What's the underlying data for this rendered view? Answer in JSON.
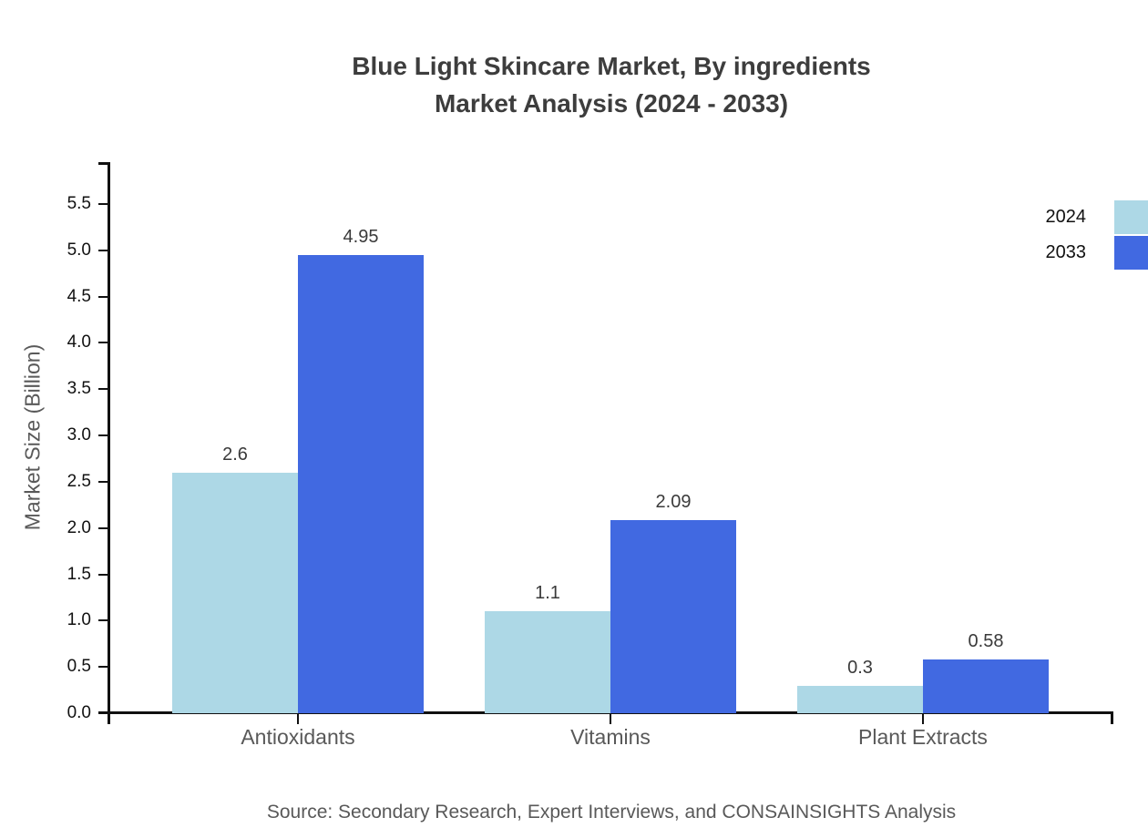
{
  "title": {
    "line1": "Blue Light Skincare Market, By ingredients",
    "line2": "Market Analysis (2024 - 2033)"
  },
  "source": "Source: Secondary Research, Expert Interviews, and CONSAINSIGHTS Analysis",
  "chart_data": {
    "type": "bar",
    "categories": [
      "Antioxidants",
      "Vitamins",
      "Plant Extracts"
    ],
    "series": [
      {
        "name": "2024",
        "color": "#ADD8E6",
        "values": [
          2.6,
          1.1,
          0.3
        ]
      },
      {
        "name": "2033",
        "color": "#4169E1",
        "values": [
          4.95,
          2.09,
          0.58
        ]
      }
    ],
    "value_labels": [
      "2.6",
      "4.95",
      "1.1",
      "2.09",
      "0.3",
      "0.58"
    ],
    "title": "Blue Light Skincare Market, By ingredients Market Analysis (2024 - 2033)",
    "xlabel": "",
    "ylabel": "Market Size (Billion)",
    "ylim": [
      0,
      5.5
    ],
    "ytick_step": 0.5,
    "grid": false,
    "legend_position": "right-top",
    "axis_color": "#111111"
  }
}
